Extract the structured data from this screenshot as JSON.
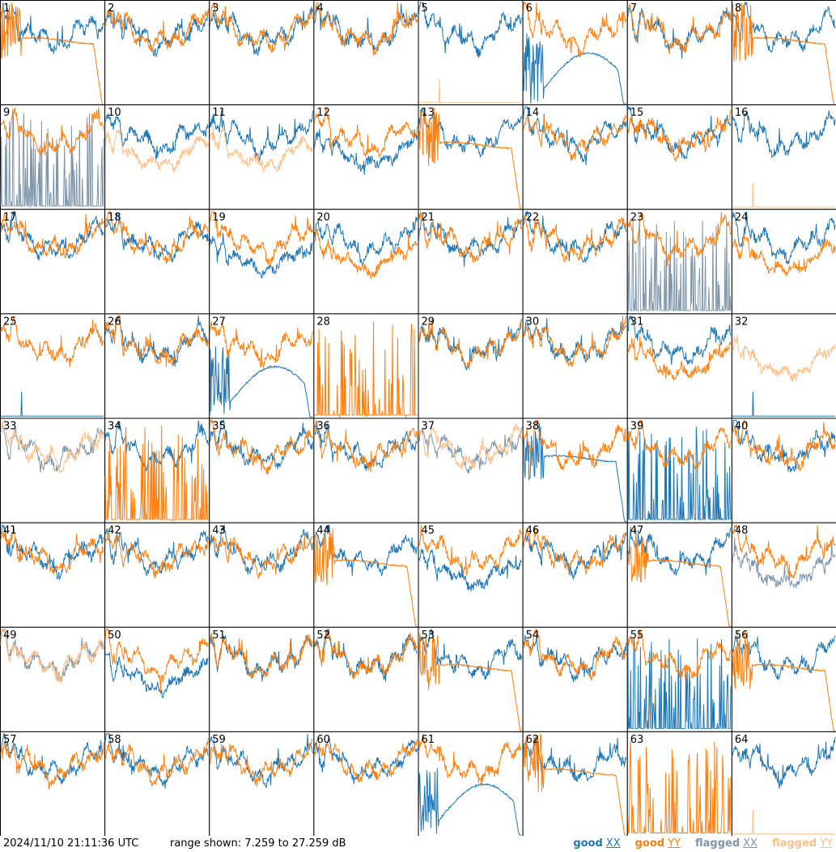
{
  "footer": {
    "timestamp": "2024/11/10 21:11:36 UTC",
    "range_text": "range shown: 7.259 to 27.259 dB"
  },
  "legend": [
    {
      "status": "good",
      "pol": "XX",
      "color": "#1f77b4"
    },
    {
      "status": "good",
      "pol": "YY",
      "color": "#ff7f0e"
    },
    {
      "status": "flagged",
      "pol": "XX",
      "color": "#7f96aa"
    },
    {
      "status": "flagged",
      "pol": "YY",
      "color": "#ffc08a"
    }
  ],
  "colors": {
    "good_xx": "#1f77b4",
    "good_yy": "#ff7f0e",
    "flagged_xx": "#7f96aa",
    "flagged_yy": "#ffc08a",
    "panel_border": "#000000"
  },
  "chart_data": {
    "type": "line",
    "layout": "8x8 small multiples",
    "xlabel": "",
    "ylabel": "",
    "ylim": [
      7.259,
      27.259
    ],
    "units": "dB",
    "series_names": [
      "XX",
      "YY"
    ],
    "panels": [
      {
        "id": 1,
        "xx": "good",
        "yy": "good",
        "xx_shape": "normal",
        "yy_shape": "rolloff"
      },
      {
        "id": 2,
        "xx": "good",
        "yy": "good",
        "xx_shape": "normal",
        "yy_shape": "normal"
      },
      {
        "id": 3,
        "xx": "good",
        "yy": "good",
        "xx_shape": "normal",
        "yy_shape": "normal"
      },
      {
        "id": 4,
        "xx": "good",
        "yy": "good",
        "xx_shape": "normal",
        "yy_shape": "normal"
      },
      {
        "id": 5,
        "xx": "good",
        "yy": "flagged",
        "xx_shape": "normal",
        "yy_shape": "dead"
      },
      {
        "id": 6,
        "xx": "good",
        "yy": "good",
        "xx_shape": "bathtub",
        "yy_shape": "normal"
      },
      {
        "id": 7,
        "xx": "good",
        "yy": "good",
        "xx_shape": "normal",
        "yy_shape": "normal"
      },
      {
        "id": 8,
        "xx": "good",
        "yy": "good",
        "xx_shape": "normal",
        "yy_shape": "rolloff"
      },
      {
        "id": 9,
        "xx": "flagged",
        "yy": "good",
        "xx_shape": "spiky",
        "yy_shape": "normal"
      },
      {
        "id": 10,
        "xx": "good",
        "yy": "flagged",
        "xx_shape": "normal",
        "yy_shape": "low"
      },
      {
        "id": 11,
        "xx": "good",
        "yy": "flagged",
        "xx_shape": "normal",
        "yy_shape": "low"
      },
      {
        "id": 12,
        "xx": "good",
        "yy": "good",
        "xx_shape": "low",
        "yy_shape": "normal"
      },
      {
        "id": 13,
        "xx": "good",
        "yy": "good",
        "xx_shape": "normal",
        "yy_shape": "rolloff"
      },
      {
        "id": 14,
        "xx": "good",
        "yy": "good",
        "xx_shape": "normal",
        "yy_shape": "normal"
      },
      {
        "id": 15,
        "xx": "good",
        "yy": "good",
        "xx_shape": "normal",
        "yy_shape": "normal"
      },
      {
        "id": 16,
        "xx": "good",
        "yy": "flagged",
        "xx_shape": "normal",
        "yy_shape": "dead"
      },
      {
        "id": 17,
        "xx": "good",
        "yy": "good",
        "xx_shape": "normal",
        "yy_shape": "normal"
      },
      {
        "id": 18,
        "xx": "good",
        "yy": "good",
        "xx_shape": "normal",
        "yy_shape": "normal"
      },
      {
        "id": 19,
        "xx": "good",
        "yy": "good",
        "xx_shape": "low",
        "yy_shape": "normal"
      },
      {
        "id": 20,
        "xx": "good",
        "yy": "good",
        "xx_shape": "normal",
        "yy_shape": "low"
      },
      {
        "id": 21,
        "xx": "good",
        "yy": "good",
        "xx_shape": "normal",
        "yy_shape": "normal"
      },
      {
        "id": 22,
        "xx": "good",
        "yy": "good",
        "xx_shape": "normal",
        "yy_shape": "normal"
      },
      {
        "id": 23,
        "xx": "flagged",
        "yy": "good",
        "xx_shape": "spiky",
        "yy_shape": "normal"
      },
      {
        "id": 24,
        "xx": "good",
        "yy": "good",
        "xx_shape": "normal",
        "yy_shape": "low"
      },
      {
        "id": 25,
        "xx": "good",
        "yy": "good",
        "xx_shape": "dead",
        "yy_shape": "normal"
      },
      {
        "id": 26,
        "xx": "good",
        "yy": "good",
        "xx_shape": "normal",
        "yy_shape": "normal"
      },
      {
        "id": 27,
        "xx": "good",
        "yy": "good",
        "xx_shape": "bathtub",
        "yy_shape": "normal"
      },
      {
        "id": 28,
        "xx": "good",
        "yy": "good",
        "xx_shape": "none",
        "yy_shape": "spiky"
      },
      {
        "id": 29,
        "xx": "good",
        "yy": "good",
        "xx_shape": "normal",
        "yy_shape": "normal"
      },
      {
        "id": 30,
        "xx": "good",
        "yy": "good",
        "xx_shape": "normal",
        "yy_shape": "normal"
      },
      {
        "id": 31,
        "xx": "good",
        "yy": "good",
        "xx_shape": "normal",
        "yy_shape": "low"
      },
      {
        "id": 32,
        "xx": "good",
        "yy": "flagged",
        "xx_shape": "dead",
        "yy_shape": "low"
      },
      {
        "id": 33,
        "xx": "flagged",
        "yy": "flagged",
        "xx_shape": "normal",
        "yy_shape": "normal"
      },
      {
        "id": 34,
        "xx": "good",
        "yy": "good",
        "xx_shape": "normal",
        "yy_shape": "spiky"
      },
      {
        "id": 35,
        "xx": "good",
        "yy": "good",
        "xx_shape": "normal",
        "yy_shape": "normal"
      },
      {
        "id": 36,
        "xx": "good",
        "yy": "good",
        "xx_shape": "normal",
        "yy_shape": "normal"
      },
      {
        "id": 37,
        "xx": "flagged",
        "yy": "flagged",
        "xx_shape": "normal",
        "yy_shape": "normal"
      },
      {
        "id": 38,
        "xx": "good",
        "yy": "good",
        "xx_shape": "rolloff",
        "yy_shape": "normal"
      },
      {
        "id": 39,
        "xx": "good",
        "yy": "good",
        "xx_shape": "spiky",
        "yy_shape": "normal"
      },
      {
        "id": 40,
        "xx": "good",
        "yy": "good",
        "xx_shape": "normal",
        "yy_shape": "normal"
      },
      {
        "id": 41,
        "xx": "good",
        "yy": "good",
        "xx_shape": "normal",
        "yy_shape": "normal"
      },
      {
        "id": 42,
        "xx": "good",
        "yy": "good",
        "xx_shape": "normal",
        "yy_shape": "normal"
      },
      {
        "id": 43,
        "xx": "good",
        "yy": "good",
        "xx_shape": "normal",
        "yy_shape": "normal"
      },
      {
        "id": 44,
        "xx": "good",
        "yy": "good",
        "xx_shape": "normal",
        "yy_shape": "rolloff"
      },
      {
        "id": 45,
        "xx": "good",
        "yy": "good",
        "xx_shape": "low",
        "yy_shape": "normal"
      },
      {
        "id": 46,
        "xx": "good",
        "yy": "good",
        "xx_shape": "normal",
        "yy_shape": "normal"
      },
      {
        "id": 47,
        "xx": "good",
        "yy": "good",
        "xx_shape": "normal",
        "yy_shape": "rolloff"
      },
      {
        "id": 48,
        "xx": "flagged",
        "yy": "good",
        "xx_shape": "low",
        "yy_shape": "normal"
      },
      {
        "id": 49,
        "xx": "flagged",
        "yy": "flagged",
        "xx_shape": "normal",
        "yy_shape": "normal"
      },
      {
        "id": 50,
        "xx": "good",
        "yy": "good",
        "xx_shape": "low",
        "yy_shape": "normal"
      },
      {
        "id": 51,
        "xx": "good",
        "yy": "good",
        "xx_shape": "normal",
        "yy_shape": "normal"
      },
      {
        "id": 52,
        "xx": "good",
        "yy": "good",
        "xx_shape": "normal",
        "yy_shape": "normal"
      },
      {
        "id": 53,
        "xx": "good",
        "yy": "good",
        "xx_shape": "normal",
        "yy_shape": "rolloff"
      },
      {
        "id": 54,
        "xx": "good",
        "yy": "good",
        "xx_shape": "normal",
        "yy_shape": "normal"
      },
      {
        "id": 55,
        "xx": "good",
        "yy": "good",
        "xx_shape": "spiky",
        "yy_shape": "normal"
      },
      {
        "id": 56,
        "xx": "good",
        "yy": "good",
        "xx_shape": "normal",
        "yy_shape": "rolloff"
      },
      {
        "id": 57,
        "xx": "good",
        "yy": "good",
        "xx_shape": "normal",
        "yy_shape": "normal"
      },
      {
        "id": 58,
        "xx": "good",
        "yy": "good",
        "xx_shape": "normal",
        "yy_shape": "normal"
      },
      {
        "id": 59,
        "xx": "good",
        "yy": "good",
        "xx_shape": "normal",
        "yy_shape": "normal"
      },
      {
        "id": 60,
        "xx": "good",
        "yy": "good",
        "xx_shape": "normal",
        "yy_shape": "normal"
      },
      {
        "id": 61,
        "xx": "good",
        "yy": "good",
        "xx_shape": "bathtub",
        "yy_shape": "normal"
      },
      {
        "id": 62,
        "xx": "good",
        "yy": "good",
        "xx_shape": "normal",
        "yy_shape": "rolloff"
      },
      {
        "id": 63,
        "xx": "good",
        "yy": "good",
        "xx_shape": "none",
        "yy_shape": "spiky"
      },
      {
        "id": 64,
        "xx": "good",
        "yy": "flagged",
        "xx_shape": "normal",
        "yy_shape": "dead"
      }
    ]
  }
}
